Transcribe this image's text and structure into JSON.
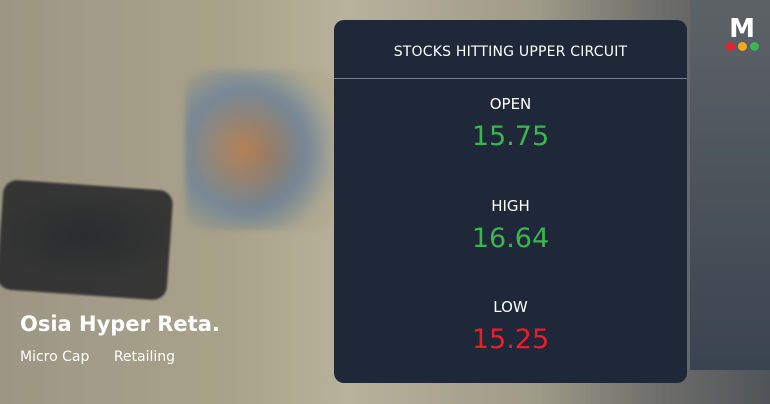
{
  "card": {
    "title": "STOCKS HITTING UPPER CIRCUIT",
    "rows": [
      {
        "label": "OPEN",
        "value": "15.75",
        "color": "#3cb550"
      },
      {
        "label": "HIGH",
        "value": "16.64",
        "color": "#3cb550"
      },
      {
        "label": "LOW",
        "value": "15.25",
        "color": "#ee1b2e"
      }
    ]
  },
  "stock": {
    "name": "Osia Hyper Reta.",
    "tags": [
      "Micro Cap",
      "Retailing"
    ]
  },
  "logo": {
    "letter": "M",
    "dot_colors": [
      "#e8202a",
      "#f5a623",
      "#3cb550"
    ]
  }
}
